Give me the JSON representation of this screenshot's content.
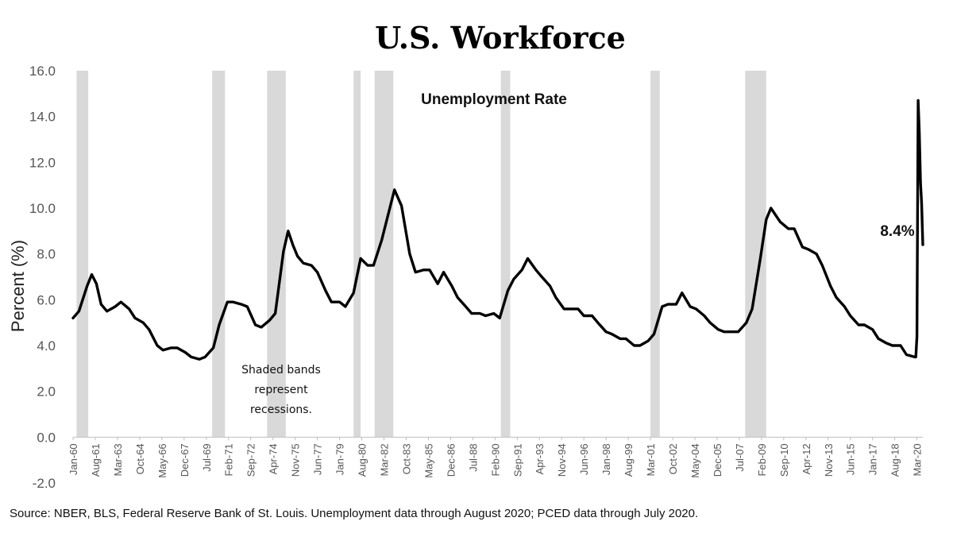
{
  "chart_data": {
    "type": "line",
    "title": "U.S. Workforce",
    "subtitle": "Unemployment Rate",
    "ylabel": "Percent (%)",
    "xlabel": "",
    "ylim": [
      -2.0,
      16.0
    ],
    "yticks": [
      "-2.0",
      "0.0",
      "2.0",
      "4.0",
      "6.0",
      "8.0",
      "10.0",
      "12.0",
      "14.0",
      "16.0"
    ],
    "xlim": [
      "1960-01",
      "2020-08"
    ],
    "xticks": [
      "Jan-60",
      "Aug-61",
      "Mar-63",
      "Oct-64",
      "May-66",
      "Dec-67",
      "Jul-69",
      "Feb-71",
      "Sep-72",
      "Apr-74",
      "Nov-75",
      "Jun-77",
      "Jan-79",
      "Aug-80",
      "Mar-82",
      "Oct-83",
      "May-85",
      "Dec-86",
      "Jul-88",
      "Feb-90",
      "Sep-91",
      "Apr-93",
      "Nov-94",
      "Jun-96",
      "Jan-98",
      "Aug-99",
      "Mar-01",
      "Oct-02",
      "May-04",
      "Dec-05",
      "Jul-07",
      "Feb-09",
      "Sep-10",
      "Apr-12",
      "Nov-13",
      "Jun-15",
      "Jan-17",
      "Aug-18",
      "Mar-20"
    ],
    "recessions": [
      [
        "1960-04",
        "1961-02"
      ],
      [
        "1969-12",
        "1970-11"
      ],
      [
        "1973-11",
        "1975-03"
      ],
      [
        "1980-01",
        "1980-07"
      ],
      [
        "1981-07",
        "1982-11"
      ],
      [
        "1990-07",
        "1991-03"
      ],
      [
        "2001-03",
        "2001-11"
      ],
      [
        "2007-12",
        "2009-06"
      ]
    ],
    "series": [
      {
        "x": [
          "1960-01",
          "1960-06",
          "1961-01",
          "1961-05",
          "1961-09",
          "1962-01",
          "1962-06",
          "1963-01",
          "1963-06",
          "1964-01",
          "1964-06",
          "1965-01",
          "1965-06",
          "1966-01",
          "1966-06",
          "1967-01",
          "1967-06",
          "1968-01",
          "1968-06",
          "1969-01",
          "1969-06",
          "1970-01",
          "1970-06",
          "1971-01",
          "1971-06",
          "1972-01",
          "1972-06",
          "1973-01",
          "1973-06",
          "1974-01",
          "1974-06",
          "1975-01",
          "1975-05",
          "1975-09",
          "1976-01",
          "1976-06",
          "1977-01",
          "1977-06",
          "1978-01",
          "1978-06",
          "1979-01",
          "1979-06",
          "1980-01",
          "1980-07",
          "1981-01",
          "1981-06",
          "1982-01",
          "1982-06",
          "1982-12",
          "1983-06",
          "1984-01",
          "1984-06",
          "1985-01",
          "1985-06",
          "1986-01",
          "1986-06",
          "1987-01",
          "1987-06",
          "1988-01",
          "1988-06",
          "1989-01",
          "1989-06",
          "1990-01",
          "1990-06",
          "1991-01",
          "1991-06",
          "1992-01",
          "1992-06",
          "1993-01",
          "1993-06",
          "1994-01",
          "1994-06",
          "1995-01",
          "1995-06",
          "1996-01",
          "1996-06",
          "1997-01",
          "1997-06",
          "1998-01",
          "1998-06",
          "1999-01",
          "1999-06",
          "2000-01",
          "2000-06",
          "2001-01",
          "2001-06",
          "2002-01",
          "2002-06",
          "2003-01",
          "2003-06",
          "2004-01",
          "2004-06",
          "2005-01",
          "2005-06",
          "2006-01",
          "2006-06",
          "2007-01",
          "2007-06",
          "2008-01",
          "2008-06",
          "2009-01",
          "2009-06",
          "2009-10",
          "2010-06",
          "2011-01",
          "2011-06",
          "2012-01",
          "2012-06",
          "2013-01",
          "2013-06",
          "2014-01",
          "2014-06",
          "2015-01",
          "2015-06",
          "2016-01",
          "2016-06",
          "2017-01",
          "2017-06",
          "2018-01",
          "2018-06",
          "2019-01",
          "2019-06",
          "2020-01",
          "2020-02",
          "2020-03",
          "2020-04",
          "2020-05",
          "2020-06",
          "2020-07",
          "2020-08"
        ],
        "values": [
          5.2,
          5.5,
          6.6,
          7.1,
          6.7,
          5.8,
          5.5,
          5.7,
          5.9,
          5.6,
          5.2,
          5.0,
          4.7,
          4.0,
          3.8,
          3.9,
          3.9,
          3.7,
          3.5,
          3.4,
          3.5,
          3.9,
          4.9,
          5.9,
          5.9,
          5.8,
          5.7,
          4.9,
          4.8,
          5.1,
          5.4,
          8.1,
          9.0,
          8.4,
          7.9,
          7.6,
          7.5,
          7.2,
          6.4,
          5.9,
          5.9,
          5.7,
          6.3,
          7.8,
          7.5,
          7.5,
          8.6,
          9.6,
          10.8,
          10.1,
          8.0,
          7.2,
          7.3,
          7.3,
          6.7,
          7.2,
          6.6,
          6.1,
          5.7,
          5.4,
          5.4,
          5.3,
          5.4,
          5.2,
          6.4,
          6.9,
          7.3,
          7.8,
          7.3,
          7.0,
          6.6,
          6.1,
          5.6,
          5.6,
          5.6,
          5.3,
          5.3,
          5.0,
          4.6,
          4.5,
          4.3,
          4.3,
          4.0,
          4.0,
          4.2,
          4.5,
          5.7,
          5.8,
          5.8,
          6.3,
          5.7,
          5.6,
          5.3,
          5.0,
          4.7,
          4.6,
          4.6,
          4.6,
          5.0,
          5.6,
          7.8,
          9.5,
          10.0,
          9.4,
          9.1,
          9.1,
          8.3,
          8.2,
          8.0,
          7.5,
          6.6,
          6.1,
          5.7,
          5.3,
          4.9,
          4.9,
          4.7,
          4.3,
          4.1,
          4.0,
          4.0,
          3.6,
          3.5,
          3.5,
          4.4,
          14.7,
          13.3,
          11.1,
          10.2,
          8.4
        ]
      }
    ],
    "annotations": {
      "last_value": "8.4%",
      "note_lines": [
        "Shaded bands",
        "represent",
        "recessions."
      ]
    },
    "source": "Source: NBER, BLS, Federal Reserve Bank of St. Louis. Unemployment data through August 2020; PCED data through July 2020."
  }
}
